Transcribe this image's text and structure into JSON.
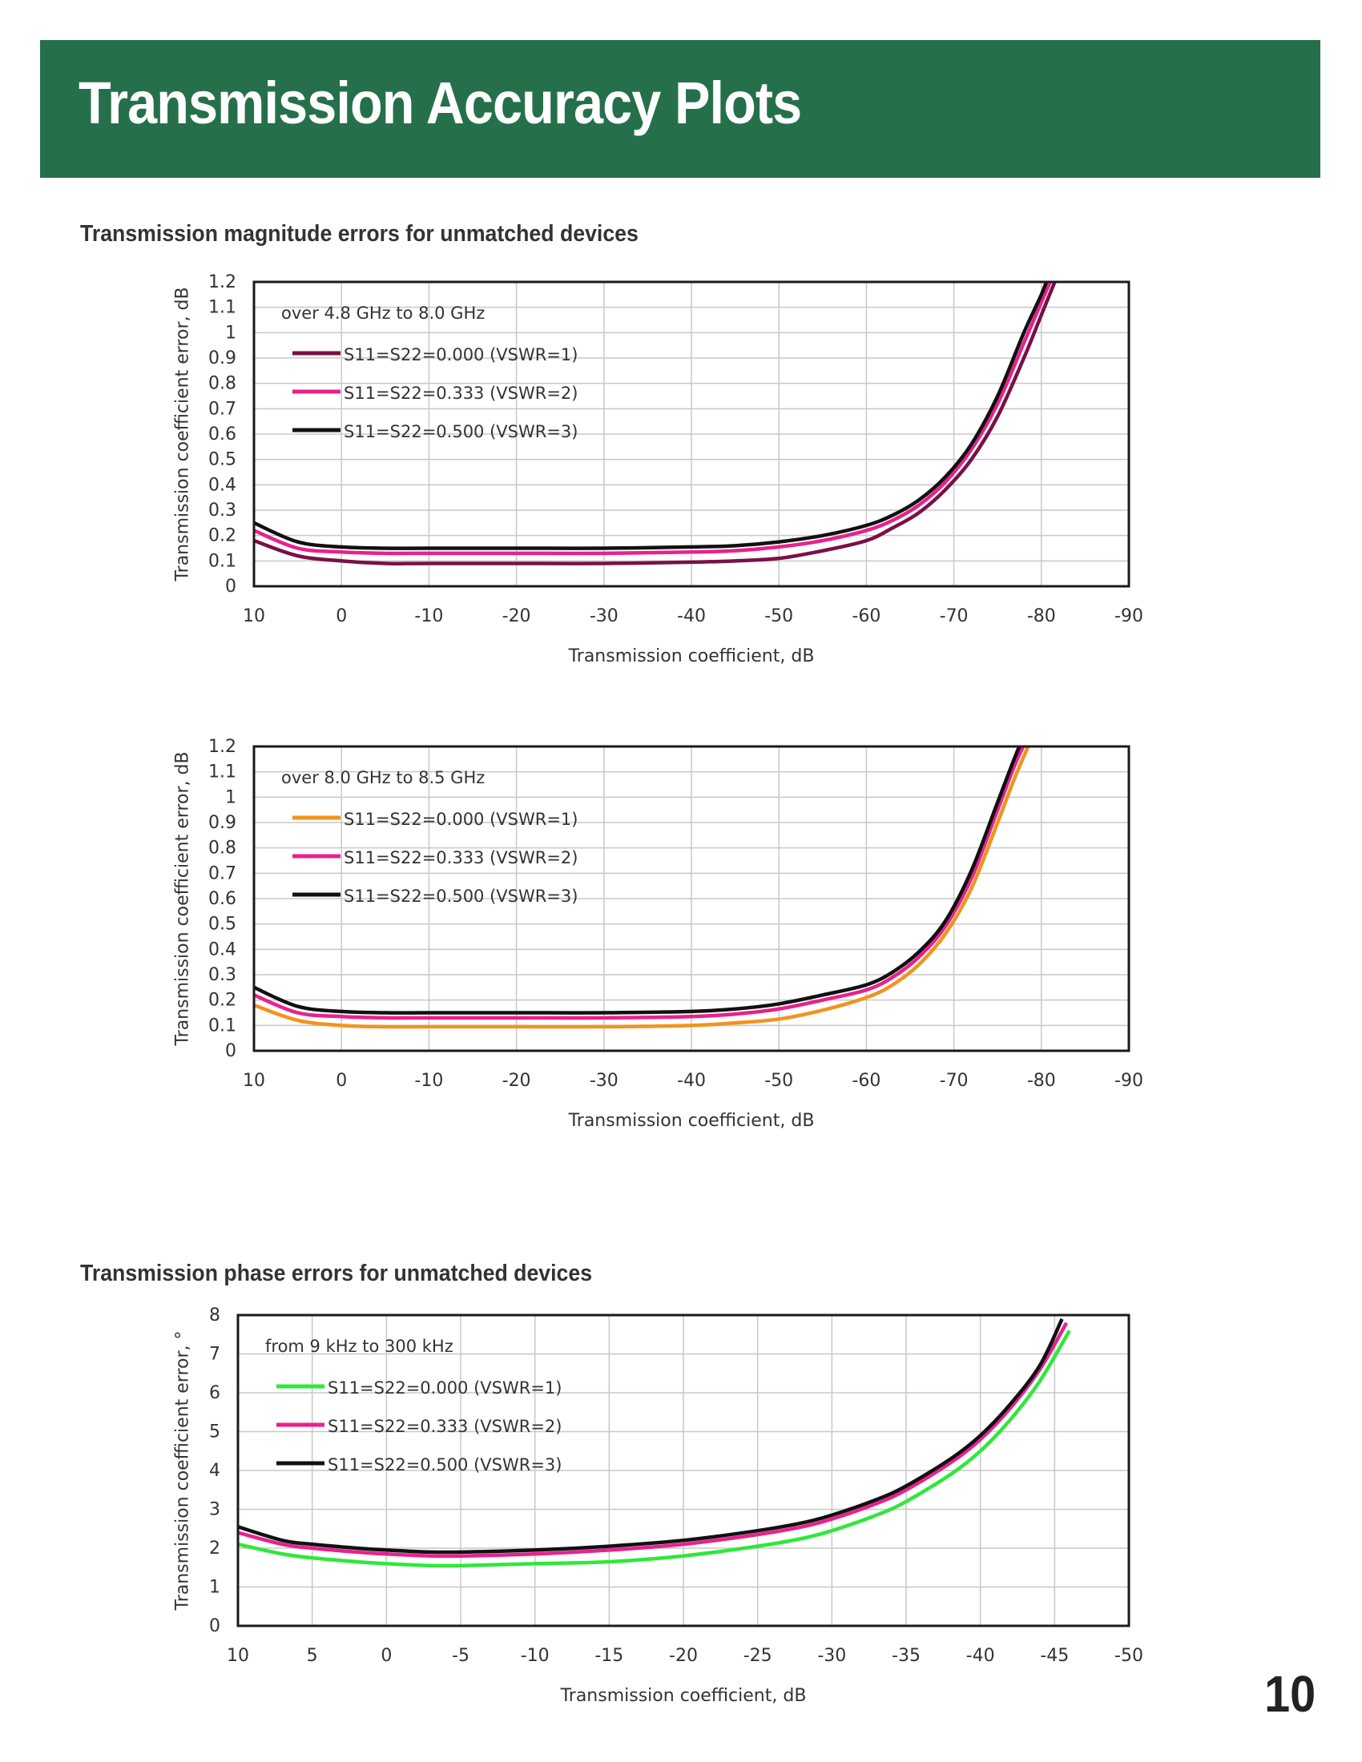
{
  "page": {
    "title": "Transmission Accuracy Plots",
    "section_magnitude": "Transmission magnitude errors for unmatched devices",
    "section_phase": "Transmission phase errors for unmatched devices",
    "page_number": "10"
  },
  "chart_data": [
    {
      "type": "line",
      "annotation": "over 4.8 GHz to 8.0 GHz",
      "xlabel": "Transmission coefficient, dB",
      "ylabel": "Transmission coefficient error, dB",
      "xlim": [
        10,
        -90
      ],
      "ylim": [
        0,
        1.2
      ],
      "xticks": [
        10,
        0,
        -10,
        -20,
        -30,
        -40,
        -50,
        -60,
        -70,
        -80,
        -90
      ],
      "yticks": [
        0,
        0.1,
        0.2,
        0.3,
        0.4,
        0.5,
        0.6,
        0.7,
        0.8,
        0.9,
        1,
        1.1,
        1.2
      ],
      "grid": true,
      "legend_position": "top-left",
      "series": [
        {
          "name": "S11=S22=0.000 (VSWR=1)",
          "color": "#7a1046",
          "x": [
            10,
            5,
            0,
            -5,
            -10,
            -20,
            -30,
            -40,
            -45,
            -50,
            -55,
            -60,
            -63,
            -66,
            -69,
            -72,
            -75,
            -78,
            -80,
            -82
          ],
          "y": [
            0.18,
            0.12,
            0.1,
            0.09,
            0.09,
            0.09,
            0.09,
            0.095,
            0.1,
            0.11,
            0.14,
            0.18,
            0.23,
            0.29,
            0.38,
            0.5,
            0.67,
            0.9,
            1.07,
            1.24
          ]
        },
        {
          "name": "S11=S22=0.333 (VSWR=2)",
          "color": "#e8218c",
          "x": [
            10,
            5,
            0,
            -5,
            -10,
            -20,
            -30,
            -40,
            -45,
            -50,
            -55,
            -60,
            -63,
            -66,
            -69,
            -72,
            -75,
            -78,
            -80,
            -81.5
          ],
          "y": [
            0.22,
            0.15,
            0.135,
            0.13,
            0.13,
            0.13,
            0.13,
            0.135,
            0.14,
            0.155,
            0.18,
            0.22,
            0.26,
            0.32,
            0.41,
            0.54,
            0.72,
            0.96,
            1.12,
            1.24
          ]
        },
        {
          "name": "S11=S22=0.500 (VSWR=3)",
          "color": "#111111",
          "x": [
            10,
            5,
            0,
            -5,
            -10,
            -20,
            -30,
            -40,
            -45,
            -50,
            -55,
            -60,
            -63,
            -66,
            -69,
            -72,
            -75,
            -78,
            -80,
            -81
          ],
          "y": [
            0.25,
            0.175,
            0.155,
            0.15,
            0.15,
            0.15,
            0.15,
            0.155,
            0.16,
            0.175,
            0.2,
            0.24,
            0.28,
            0.34,
            0.43,
            0.56,
            0.75,
            1.0,
            1.15,
            1.24
          ]
        }
      ]
    },
    {
      "type": "line",
      "annotation": "over 8.0 GHz to 8.5 GHz",
      "xlabel": "Transmission coefficient, dB",
      "ylabel": "Transmission coefficient error, dB",
      "xlim": [
        10,
        -90
      ],
      "ylim": [
        0,
        1.2
      ],
      "xticks": [
        10,
        0,
        -10,
        -20,
        -30,
        -40,
        -50,
        -60,
        -70,
        -80,
        -90
      ],
      "yticks": [
        0,
        0.1,
        0.2,
        0.3,
        0.4,
        0.5,
        0.6,
        0.7,
        0.8,
        0.9,
        1,
        1.1,
        1.2
      ],
      "grid": true,
      "legend_position": "top-left",
      "series": [
        {
          "name": "S11=S22=0.000 (VSWR=1)",
          "color": "#f0941f",
          "x": [
            10,
            5,
            0,
            -5,
            -10,
            -20,
            -30,
            -40,
            -45,
            -50,
            -55,
            -60,
            -63,
            -66,
            -69,
            -72,
            -75,
            -77,
            -79
          ],
          "y": [
            0.18,
            0.12,
            0.1,
            0.095,
            0.095,
            0.095,
            0.095,
            0.1,
            0.11,
            0.125,
            0.16,
            0.21,
            0.26,
            0.34,
            0.46,
            0.64,
            0.9,
            1.08,
            1.24
          ]
        },
        {
          "name": "S11=S22=0.333 (VSWR=2)",
          "color": "#e8218c",
          "x": [
            10,
            5,
            0,
            -5,
            -10,
            -20,
            -30,
            -40,
            -45,
            -50,
            -55,
            -60,
            -63,
            -66,
            -69,
            -72,
            -75,
            -77,
            -78.5
          ],
          "y": [
            0.22,
            0.15,
            0.135,
            0.13,
            0.13,
            0.13,
            0.13,
            0.135,
            0.145,
            0.165,
            0.2,
            0.24,
            0.29,
            0.37,
            0.49,
            0.68,
            0.95,
            1.13,
            1.24
          ]
        },
        {
          "name": "S11=S22=0.500 (VSWR=3)",
          "color": "#111111",
          "x": [
            10,
            5,
            0,
            -5,
            -10,
            -20,
            -30,
            -40,
            -45,
            -50,
            -55,
            -60,
            -63,
            -66,
            -69,
            -72,
            -75,
            -77,
            -78
          ],
          "y": [
            0.25,
            0.175,
            0.155,
            0.15,
            0.15,
            0.15,
            0.15,
            0.155,
            0.165,
            0.185,
            0.22,
            0.26,
            0.31,
            0.39,
            0.51,
            0.71,
            0.98,
            1.16,
            1.24
          ]
        }
      ]
    },
    {
      "type": "line",
      "annotation": "from 9 kHz to 300 kHz",
      "xlabel": "Transmission coefficient, dB",
      "ylabel": "Transmission coefficient error, °",
      "xlim": [
        10,
        -50
      ],
      "ylim": [
        0,
        8
      ],
      "xticks": [
        10,
        5,
        0,
        -5,
        -10,
        -15,
        -20,
        -25,
        -30,
        -35,
        -40,
        -45,
        -50
      ],
      "yticks": [
        0,
        1,
        2,
        3,
        4,
        5,
        6,
        7,
        8
      ],
      "grid": true,
      "legend_position": "top-left",
      "series": [
        {
          "name": "S11=S22=0.000 (VSWR=1)",
          "color": "#2ee83a",
          "x": [
            10,
            7,
            5,
            2,
            0,
            -3,
            -5,
            -10,
            -15,
            -20,
            -25,
            -28,
            -30,
            -33,
            -35,
            -38,
            -40,
            -42,
            -44,
            -46
          ],
          "y": [
            2.1,
            1.85,
            1.75,
            1.65,
            1.6,
            1.55,
            1.55,
            1.6,
            1.65,
            1.8,
            2.05,
            2.25,
            2.45,
            2.85,
            3.2,
            3.9,
            4.5,
            5.3,
            6.3,
            7.6
          ]
        },
        {
          "name": "S11=S22=0.333 (VSWR=2)",
          "color": "#e8218c",
          "x": [
            10,
            7,
            5,
            2,
            0,
            -3,
            -5,
            -10,
            -15,
            -20,
            -25,
            -28,
            -30,
            -33,
            -35,
            -38,
            -40,
            -42,
            -44,
            -45.8
          ],
          "y": [
            2.4,
            2.1,
            2.0,
            1.9,
            1.85,
            1.8,
            1.8,
            1.85,
            1.95,
            2.1,
            2.35,
            2.55,
            2.75,
            3.15,
            3.5,
            4.2,
            4.8,
            5.6,
            6.6,
            7.8
          ]
        },
        {
          "name": "S11=S22=0.500 (VSWR=3)",
          "color": "#111111",
          "x": [
            10,
            7,
            5,
            2,
            0,
            -3,
            -5,
            -10,
            -15,
            -20,
            -25,
            -28,
            -30,
            -33,
            -35,
            -38,
            -40,
            -42,
            -44,
            -45.5
          ],
          "y": [
            2.55,
            2.2,
            2.1,
            2.0,
            1.95,
            1.9,
            1.9,
            1.95,
            2.05,
            2.2,
            2.45,
            2.65,
            2.85,
            3.25,
            3.6,
            4.3,
            4.9,
            5.7,
            6.7,
            7.9
          ]
        }
      ]
    }
  ]
}
